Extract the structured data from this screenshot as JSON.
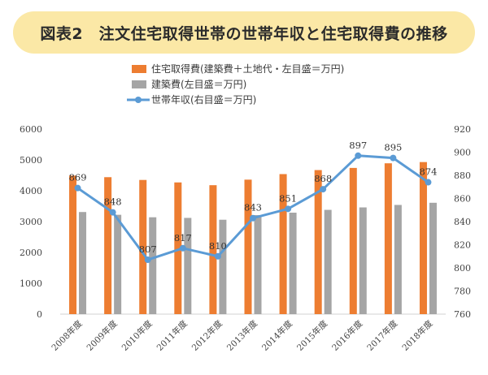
{
  "title": "図表2　注文住宅取得世帯の世帯年収と住宅取得費の推移",
  "colors": {
    "housing_cost": "#ed7d31",
    "construction_cost": "#a5a5a5",
    "income": "#5b9bd5",
    "banner": "#fbe8a6"
  },
  "chart_data": {
    "type": "bar",
    "categories": [
      "2008年度",
      "2009年度",
      "2010年度",
      "2011年度",
      "2012年度",
      "2013年度",
      "2014年度",
      "2015年度",
      "2016年度",
      "2017年度",
      "2018年度"
    ],
    "series": [
      {
        "name": "住宅取得費(建築費＋土地代・左目盛＝万円)",
        "type": "bar",
        "axis": "left",
        "values": [
          4490,
          4440,
          4350,
          4270,
          4180,
          4360,
          4540,
          4670,
          4740,
          4890,
          4930
        ]
      },
      {
        "name": "建築費(左目盛＝万円)",
        "type": "bar",
        "axis": "left",
        "values": [
          3310,
          3220,
          3140,
          3120,
          3060,
          3210,
          3290,
          3380,
          3460,
          3540,
          3610
        ]
      },
      {
        "name": "世帯年収(右目盛＝万円)",
        "type": "line",
        "axis": "right",
        "values": [
          869,
          848,
          807,
          817,
          810,
          843,
          851,
          868,
          897,
          895,
          874
        ],
        "labels": [
          "869",
          "848",
          "807",
          "817",
          "810",
          "843",
          "851",
          "868",
          "897",
          "895",
          "874"
        ]
      }
    ],
    "left_axis": {
      "range": [
        0,
        6000
      ],
      "ticks": [
        "0",
        "1000",
        "2000",
        "3000",
        "4000",
        "5000",
        "6000"
      ]
    },
    "right_axis": {
      "range": [
        760,
        920
      ],
      "ticks": [
        "760",
        "780",
        "800",
        "820",
        "840",
        "860",
        "880",
        "900",
        "920"
      ]
    },
    "legend_position": "top-center",
    "grid": false
  }
}
